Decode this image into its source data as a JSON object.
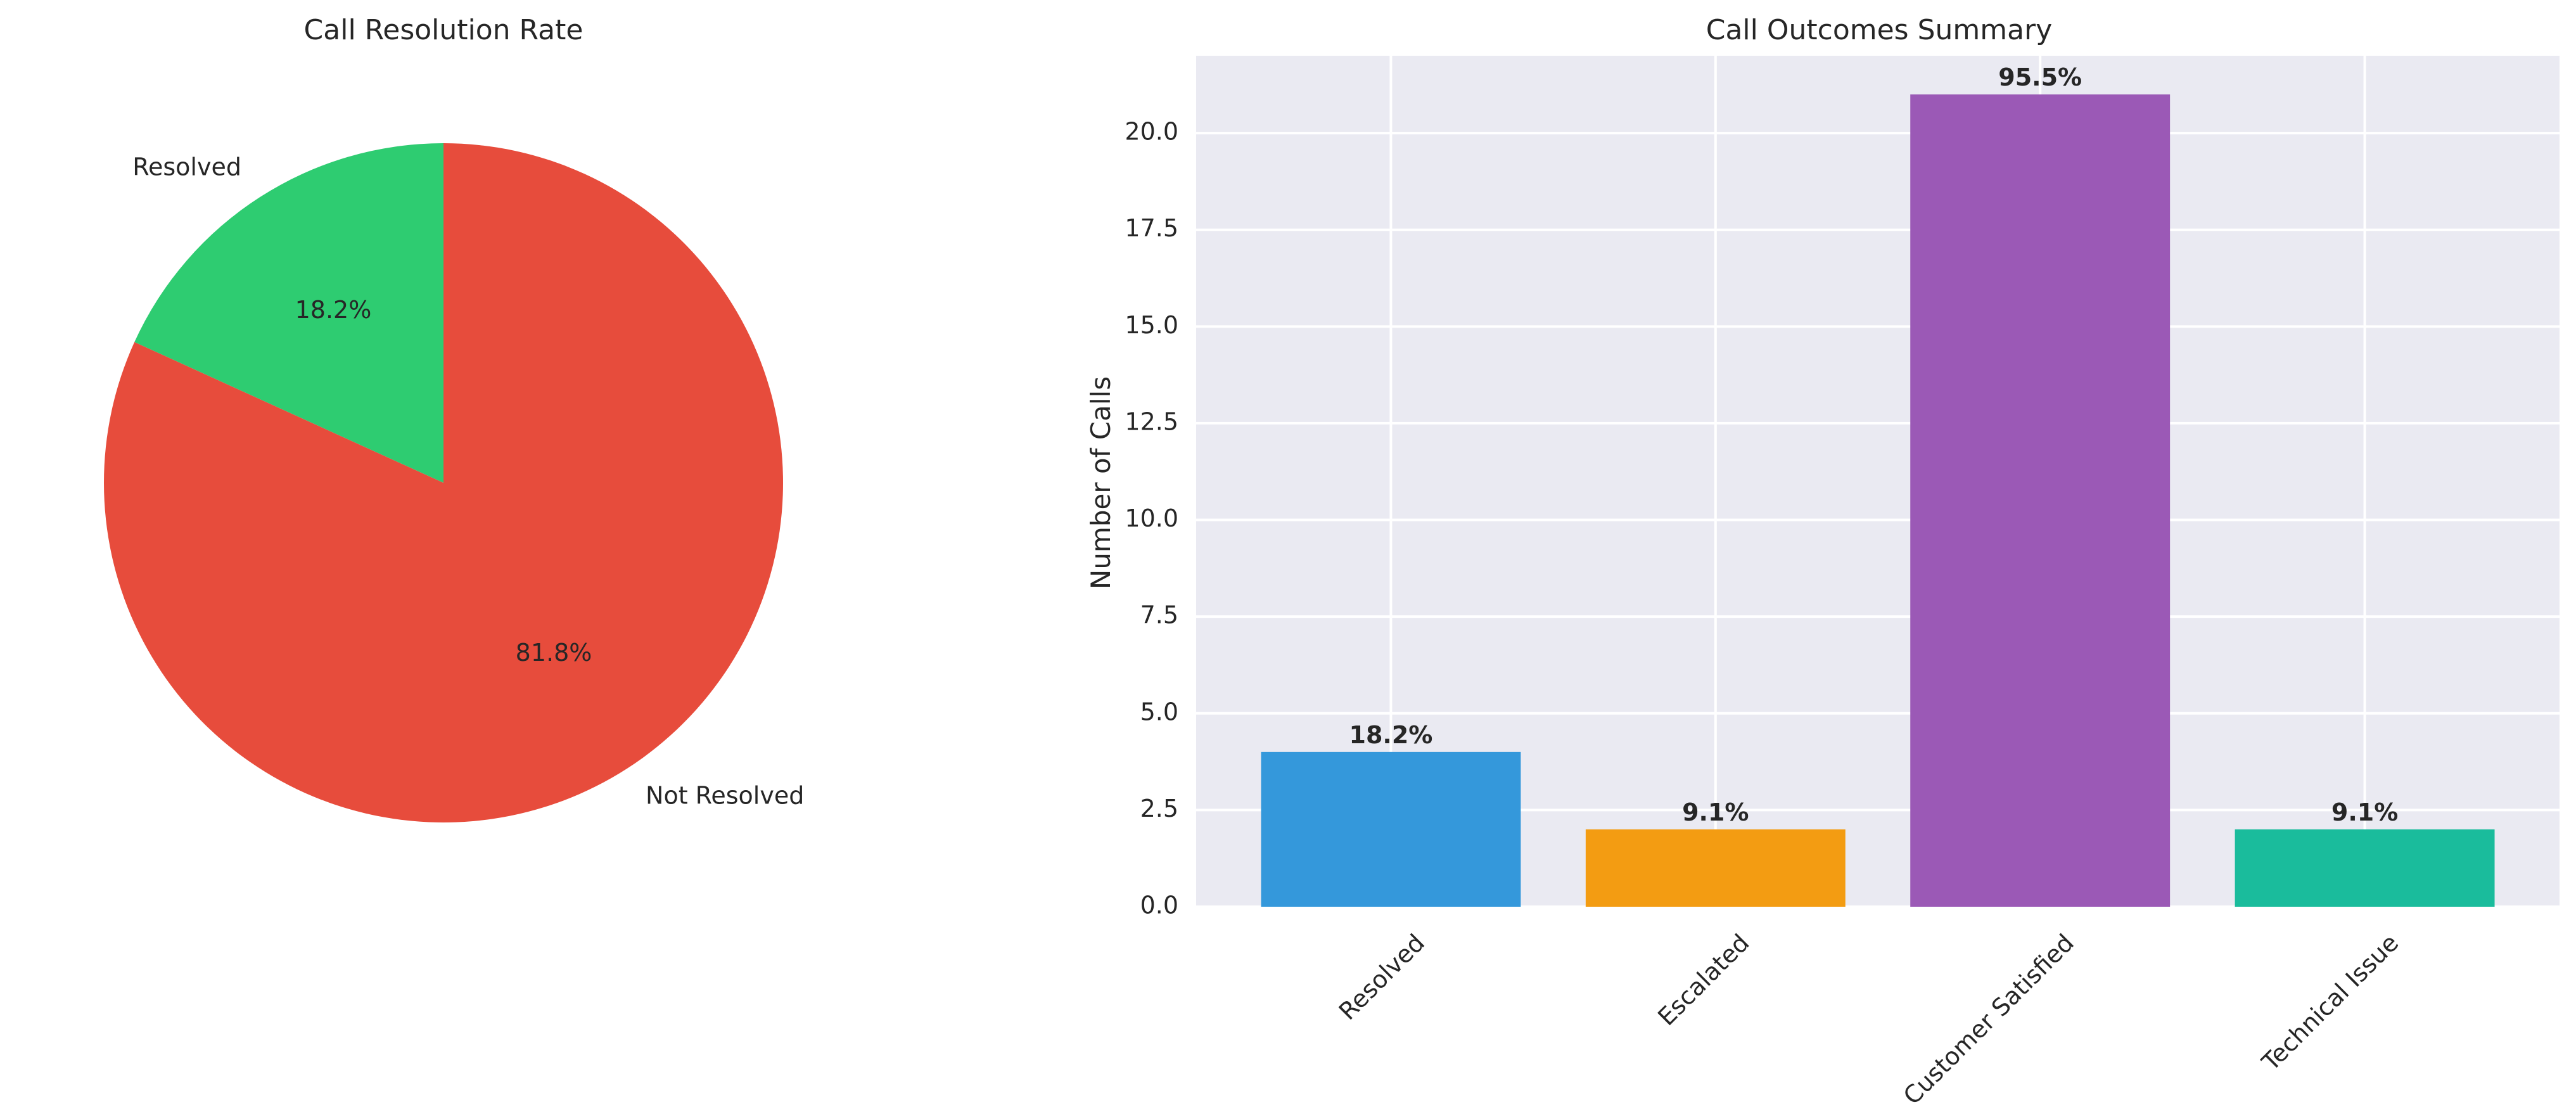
{
  "chart_data": [
    {
      "type": "pie",
      "title": "Call Resolution Rate",
      "slices": [
        {
          "label": "Resolved",
          "value": 18.2,
          "pct_label": "18.2%",
          "color": "#2ecc71"
        },
        {
          "label": "Not Resolved",
          "value": 81.8,
          "pct_label": "81.8%",
          "color": "#e74c3c"
        }
      ]
    },
    {
      "type": "bar",
      "title": "Call Outcomes Summary",
      "xlabel": "",
      "ylabel": "Number of Calls",
      "categories": [
        "Resolved",
        "Escalated",
        "Customer Satisfied",
        "Technical Issue"
      ],
      "values": [
        4,
        2,
        21,
        2
      ],
      "bar_labels": [
        "18.2%",
        "9.1%",
        "95.5%",
        "9.1%"
      ],
      "colors": [
        "#3498db",
        "#f39c12",
        "#9b59b6",
        "#1abc9c"
      ],
      "ylim": [
        0,
        22
      ],
      "yticks": [
        0.0,
        2.5,
        5.0,
        7.5,
        10.0,
        12.5,
        15.0,
        17.5,
        20.0
      ],
      "grid": true,
      "background": "#eaeaf2"
    }
  ]
}
